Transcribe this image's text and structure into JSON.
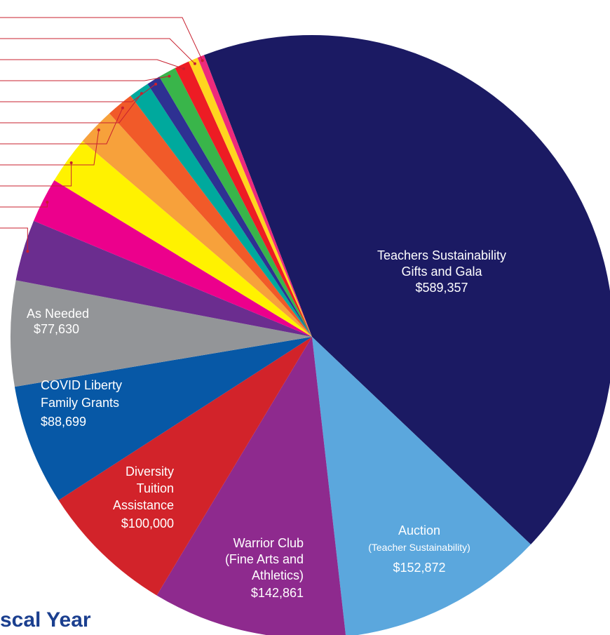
{
  "chart_data": {
    "type": "pie",
    "title": "scal Year",
    "categories": [
      [
        "Teachers Sustainability",
        "Gifts and Gala"
      ],
      [
        "Auction",
        "(Teacher Sustainability)"
      ],
      [
        "Warrior Club",
        "(Fine Arts and",
        "Athletics)"
      ],
      [
        "Diversity",
        "Tuition",
        "Assistance"
      ],
      [
        "COVID Liberty",
        "Family Grants"
      ],
      [
        "As Needed"
      ],
      null,
      null,
      null,
      null,
      null,
      null,
      null,
      null,
      null,
      null,
      null
    ],
    "values": [
      589357,
      152872,
      142861,
      100000,
      88699,
      77630,
      45000,
      33000,
      35000,
      28000,
      20000,
      15000,
      10000,
      13000,
      11000,
      7000,
      5000
    ],
    "value_labels": [
      "$589,357",
      "$152,872",
      "$142,861",
      "$100,000",
      "$88,699",
      "$77,630",
      null,
      null,
      null,
      null,
      null,
      null,
      null,
      null,
      null,
      null,
      null
    ],
    "colors": [
      "#1b1a63",
      "#5ba7dd",
      "#8e2a8e",
      "#d2232a",
      "#0758a6",
      "#939598",
      "#6b2d8f",
      "#ec008c",
      "#fff200",
      "#f7a13b",
      "#f15a29",
      "#00a99d",
      "#2e3192",
      "#39b54a",
      "#ed1c24",
      "#ffd51f",
      "#ee2a7b"
    ]
  }
}
